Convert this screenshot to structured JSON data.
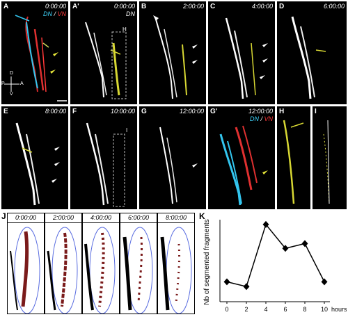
{
  "panels_top": [
    {
      "label": "A",
      "time": "0:00:00",
      "legend_a": "DN",
      "legend_sep": " / ",
      "legend_b": "VN"
    },
    {
      "label": "A'",
      "time": "0:00:00",
      "legend_a": "DN"
    },
    {
      "label": "B",
      "time": "2:00:00"
    },
    {
      "label": "C",
      "time": "4:00:00"
    },
    {
      "label": "D",
      "time": "6:00:00"
    }
  ],
  "panels_mid": [
    {
      "label": "E",
      "time": "8:00:00"
    },
    {
      "label": "F",
      "time": "10:00:00"
    },
    {
      "label": "G",
      "time": "12:00:00"
    },
    {
      "label": "G'",
      "time": "12:00:00",
      "legend_a": "DN",
      "legend_sep": " / ",
      "legend_b": "VN"
    },
    {
      "label": "H"
    },
    {
      "label": "I"
    }
  ],
  "axis_labels": {
    "d": "D",
    "v": "V",
    "p": "P",
    "a": "A"
  },
  "box_labels": {
    "h": "H",
    "i": "I"
  },
  "panel_j": {
    "label": "J",
    "times": [
      "0:00:00",
      "2:00:00",
      "4:00:00",
      "6:00:00",
      "8:00:00"
    ]
  },
  "panel_k": {
    "label": "K"
  },
  "chart_data": {
    "type": "line",
    "x": [
      0,
      2,
      4,
      6,
      8,
      10
    ],
    "values": [
      8,
      7,
      20,
      15,
      16,
      8
    ],
    "xlabel": "hours",
    "ylabel": "Nb of segmented fragments",
    "xticks": [
      "0",
      "2",
      "4",
      "6",
      "8",
      "10"
    ],
    "xlim": [
      0,
      10
    ],
    "ylim": [
      5,
      21
    ],
    "marker": "diamond",
    "color": "#000000"
  }
}
